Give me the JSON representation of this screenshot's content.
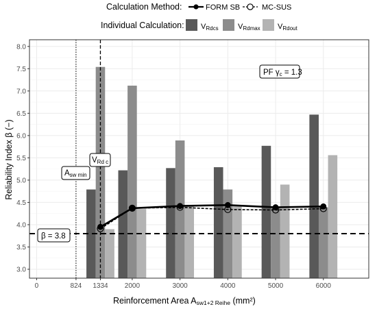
{
  "colors": {
    "VRdcs": "#595959",
    "VRdmax": "#8c8c8c",
    "VRdout": "#b3b3b3",
    "line": "#000000",
    "grid_major": "#ebebeb",
    "grid_minor": "#f5f5f5",
    "panel_border": "#333333"
  },
  "legend": {
    "method_title": "Calculation Method:",
    "method_items": [
      {
        "label": "FORM SB",
        "marker": "filled-circle"
      },
      {
        "label": "MC-SUS",
        "marker": "open-circle"
      }
    ],
    "individual_title": "Individual Calculation:",
    "individual_items": [
      {
        "main": "V",
        "sub": "Rdcs"
      },
      {
        "main": "V",
        "sub": "Rdmax"
      },
      {
        "main": "V",
        "sub": "Rdout"
      }
    ]
  },
  "annotations": {
    "pf": {
      "text": "PF γ",
      "sub": "c",
      "suffix": " = 1.3"
    },
    "beta": {
      "text": "β = 3.8"
    },
    "asw_min": {
      "main": "A",
      "sub": "sw min"
    },
    "vrdc": {
      "main": "V",
      "sub": "Rd c"
    }
  },
  "chart_data": {
    "type": "bar",
    "title": "",
    "xlabel": {
      "main": "Reinforcement Area A",
      "sub": "sw1+2 Reihe",
      "suffix": " (mm²)"
    },
    "ylabel": "Reliability Index  β (−)",
    "xlim": [
      -150,
      6950
    ],
    "ylim": [
      2.8,
      8.15
    ],
    "x_ticks": [
      0,
      824,
      1334,
      2000,
      3000,
      4000,
      5000,
      6000
    ],
    "x_tick_labels": [
      "0",
      "824",
      "1334",
      "2000",
      "3000",
      "4000",
      "5000",
      "6000"
    ],
    "y_ticks": [
      3.0,
      3.5,
      4.0,
      4.5,
      5.0,
      5.5,
      6.0,
      6.5,
      7.0,
      7.5,
      8.0
    ],
    "y_tick_labels": [
      "3.0",
      "3.5",
      "4.0",
      "4.5",
      "5.0",
      "5.5",
      "6.0",
      "6.5",
      "7.0",
      "7.5",
      "8.0"
    ],
    "grid": true,
    "bar_width": 195,
    "bar_series": [
      {
        "name": "VRdcs",
        "x": [
          1334,
          2000,
          3000,
          4000,
          5000,
          6000
        ],
        "values": [
          4.79,
          5.22,
          5.27,
          5.29,
          5.77,
          6.47
        ]
      },
      {
        "name": "VRdmax",
        "x": [
          1334,
          2000,
          3000,
          4000,
          5000,
          6000
        ],
        "values": [
          7.54,
          7.12,
          5.89,
          4.79,
          4.4,
          4.39
        ]
      },
      {
        "name": "VRdout",
        "x": [
          1334,
          2000,
          3000,
          4000,
          5000,
          6000
        ],
        "values": [
          3.9,
          4.35,
          4.42,
          4.43,
          4.9,
          5.56
        ]
      }
    ],
    "line_series": [
      {
        "name": "FORM SB",
        "marker": "filled",
        "x": [
          1334,
          2000,
          3000,
          4000,
          5000,
          6000
        ],
        "values": [
          3.95,
          4.37,
          4.42,
          4.44,
          4.39,
          4.41
        ]
      },
      {
        "name": "MC-SUS",
        "marker": "open",
        "x": [
          1334,
          2000,
          3000,
          4000,
          5000,
          6000
        ],
        "values": [
          3.91,
          4.37,
          4.39,
          4.34,
          4.33,
          4.36
        ]
      }
    ],
    "hlines": [
      {
        "y": 3.8,
        "style": "dashed"
      }
    ],
    "vlines": [
      {
        "x": 824,
        "style": "dotted"
      },
      {
        "x": 1334,
        "style": "dashed"
      }
    ]
  }
}
